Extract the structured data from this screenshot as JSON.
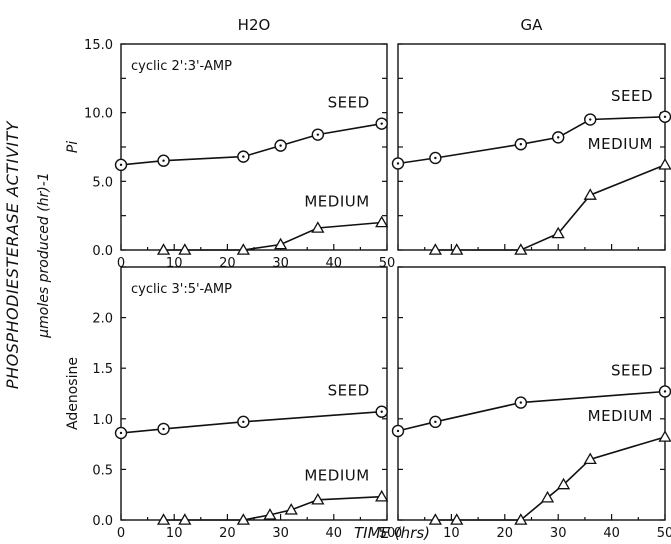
{
  "figure": {
    "ylabel_main": "PHOSPHODIESTERASE ACTIVITY",
    "ylabel_units": "µmoles produced (hr)-1",
    "xlabel": "TIME (hrs)"
  },
  "chart_data": [
    {
      "type": "line",
      "column_title": "H2O",
      "inner_label": "cyclic 2':3'-AMP",
      "ylabel": "Pi",
      "xlim": [
        0,
        50
      ],
      "ylim": [
        0,
        15
      ],
      "xticks": [
        "0",
        "10",
        "20",
        "30",
        "40",
        "50"
      ],
      "yticks": [
        "0.0",
        "5.0",
        "10.0",
        "15.0"
      ],
      "series": [
        {
          "name": "SEED",
          "marker": "circle",
          "x": [
            0,
            8,
            23,
            30,
            37,
            49
          ],
          "y": [
            6.2,
            6.5,
            6.8,
            7.6,
            8.4,
            9.2
          ]
        },
        {
          "name": "MEDIUM",
          "marker": "triangle",
          "x": [
            8,
            12,
            23,
            30,
            37,
            49
          ],
          "y": [
            0,
            0,
            0,
            0.4,
            1.6,
            2.0
          ]
        }
      ]
    },
    {
      "type": "line",
      "column_title": "GA",
      "inner_label": "",
      "ylabel": "",
      "xlim": [
        0,
        50
      ],
      "ylim": [
        0,
        15
      ],
      "xticks": [],
      "yticks": [],
      "series": [
        {
          "name": "SEED",
          "marker": "circle",
          "x": [
            0,
            7,
            23,
            30,
            36,
            50
          ],
          "y": [
            6.3,
            6.7,
            7.7,
            8.2,
            9.5,
            9.7
          ]
        },
        {
          "name": "MEDIUM",
          "marker": "triangle",
          "x": [
            7,
            11,
            23,
            30,
            36,
            50
          ],
          "y": [
            0,
            0,
            0,
            1.2,
            4.0,
            6.2
          ]
        }
      ]
    },
    {
      "type": "line",
      "column_title": "",
      "inner_label": "cyclic 3':5'-AMP",
      "ylabel": "Adenosine",
      "xlim": [
        0,
        50
      ],
      "ylim": [
        0,
        2.5
      ],
      "xticks": [
        "0",
        "10",
        "20",
        "30",
        "40",
        "50"
      ],
      "yticks": [
        "0.0",
        "0.5",
        "1.0",
        "1.5",
        "2.0"
      ],
      "series": [
        {
          "name": "SEED",
          "marker": "circle",
          "x": [
            0,
            8,
            23,
            49
          ],
          "y": [
            0.86,
            0.9,
            0.97,
            1.07
          ]
        },
        {
          "name": "MEDIUM",
          "marker": "triangle",
          "x": [
            8,
            12,
            23,
            28,
            32,
            37,
            49
          ],
          "y": [
            0,
            0,
            0,
            0.05,
            0.1,
            0.2,
            0.23
          ]
        }
      ]
    },
    {
      "type": "line",
      "column_title": "",
      "inner_label": "",
      "ylabel": "",
      "xlim": [
        0,
        50
      ],
      "ylim": [
        0,
        2.5
      ],
      "xticks": [
        "0",
        "10",
        "20",
        "30",
        "40",
        "50"
      ],
      "yticks": [],
      "series": [
        {
          "name": "SEED",
          "marker": "circle",
          "x": [
            0,
            7,
            23,
            50
          ],
          "y": [
            0.88,
            0.97,
            1.16,
            1.27
          ]
        },
        {
          "name": "MEDIUM",
          "marker": "triangle",
          "x": [
            7,
            11,
            23,
            28,
            31,
            36,
            50
          ],
          "y": [
            0,
            0,
            0,
            0.22,
            0.35,
            0.6,
            0.82
          ]
        }
      ]
    }
  ]
}
